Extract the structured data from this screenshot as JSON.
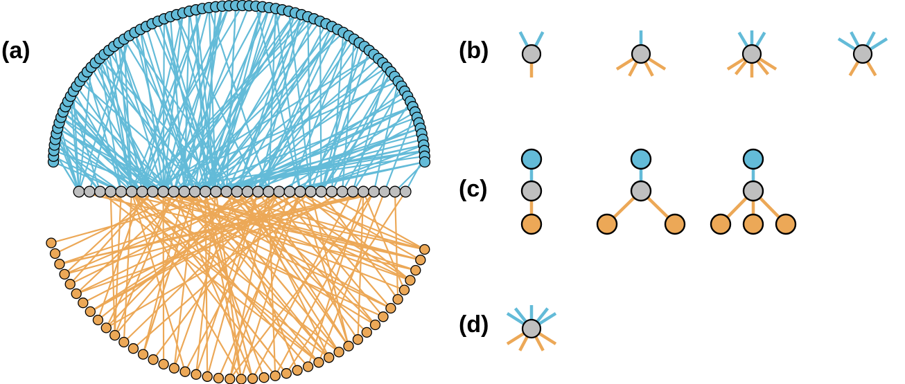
{
  "colors": {
    "blue": "#63bbd8",
    "orange": "#eca857",
    "gray": "#bfbfbf",
    "outline": "#000000"
  },
  "labels": {
    "a": "(a)",
    "b": "(b)",
    "c": "(c)",
    "d": "(d)"
  },
  "panel_a": {
    "blue_node_count": 88,
    "gray_node_count": 32,
    "orange_node_count": 44,
    "blue_edge_count": 190,
    "orange_edge_count": 115
  },
  "panel_b": {
    "motifs": [
      {
        "blue_edges": 2,
        "orange_edges": 1
      },
      {
        "blue_edges": 1,
        "orange_edges": 4
      },
      {
        "blue_edges": 3,
        "orange_edges": 5
      },
      {
        "blue_edges": 4,
        "orange_edges": 2
      }
    ]
  },
  "panel_c": {
    "motifs": [
      {
        "blue_nodes": 1,
        "orange_nodes": 1
      },
      {
        "blue_nodes": 1,
        "orange_nodes": 2
      },
      {
        "blue_nodes": 1,
        "orange_nodes": 3
      }
    ]
  },
  "panel_d": {
    "blue_edges": 5,
    "orange_edges": 4
  }
}
